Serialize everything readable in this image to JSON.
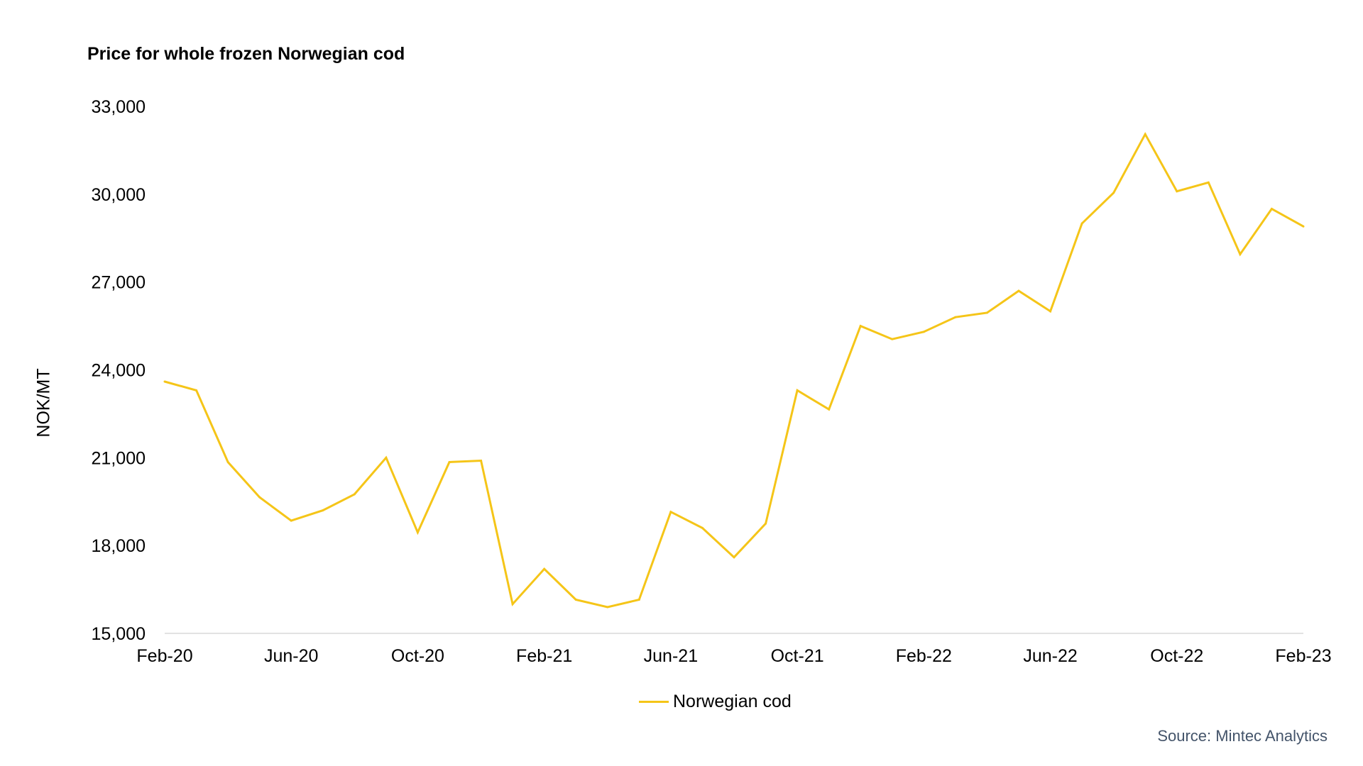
{
  "colors": {
    "series": "#F5C518",
    "axis": "#D9D9D9",
    "source": "#44546A"
  },
  "source": "Source: Mintec Analytics",
  "chart_data": {
    "type": "line",
    "title": "Price for whole frozen Norwegian cod",
    "xlabel": "",
    "ylabel": "NOK/MT",
    "ylim": [
      15000,
      33000
    ],
    "yticks": [
      15000,
      18000,
      21000,
      24000,
      27000,
      30000,
      33000
    ],
    "ytick_labels": [
      "15,000",
      "18,000",
      "21,000",
      "24,000",
      "27,000",
      "30,000",
      "33,000"
    ],
    "xtick_labels": [
      "Feb-20",
      "Jun-20",
      "Oct-20",
      "Feb-21",
      "Jun-21",
      "Oct-21",
      "Feb-22",
      "Jun-22",
      "Oct-22",
      "Feb-23"
    ],
    "xtick_step": 4,
    "grid": false,
    "legend_position": "bottom",
    "x": [
      "Feb-20",
      "Mar-20",
      "Apr-20",
      "May-20",
      "Jun-20",
      "Jul-20",
      "Aug-20",
      "Sep-20",
      "Oct-20",
      "Nov-20",
      "Dec-20",
      "Jan-21",
      "Feb-21",
      "Mar-21",
      "Apr-21",
      "May-21",
      "Jun-21",
      "Jul-21",
      "Aug-21",
      "Sep-21",
      "Oct-21",
      "Nov-21",
      "Dec-21",
      "Jan-22",
      "Feb-22",
      "Mar-22",
      "Apr-22",
      "May-22",
      "Jun-22",
      "Jul-22",
      "Aug-22",
      "Sep-22",
      "Oct-22",
      "Nov-22",
      "Dec-22",
      "Jan-23",
      "Feb-23"
    ],
    "series": [
      {
        "name": "Norwegian cod",
        "values": [
          23600,
          23300,
          20850,
          19650,
          18850,
          19200,
          19750,
          21000,
          18450,
          20850,
          20900,
          16000,
          17200,
          16150,
          15900,
          16150,
          19150,
          18600,
          17600,
          18750,
          23300,
          22650,
          25500,
          25050,
          25300,
          25800,
          25950,
          26700,
          26000,
          29000,
          30050,
          32050,
          30100,
          30400,
          27950,
          29500,
          28900
        ]
      }
    ]
  }
}
